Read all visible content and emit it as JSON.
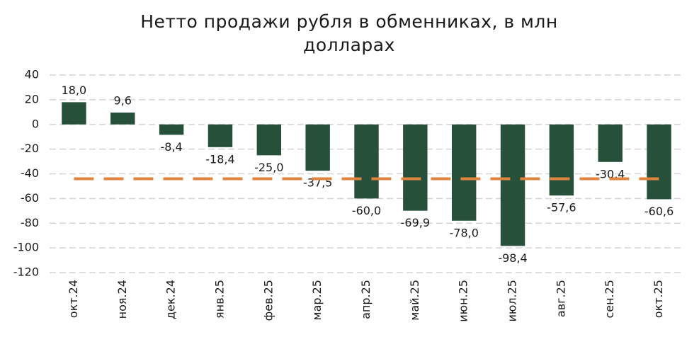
{
  "chart_data": {
    "type": "bar",
    "title": "Нетто продажи рубля в обменниках, в млн долларах",
    "categories": [
      "окт.24",
      "ноя.24",
      "дек.24",
      "янв.25",
      "фев.25",
      "мар.25",
      "апр.25",
      "май.25",
      "июн.25",
      "июл.25",
      "авг.25",
      "сен.25",
      "окт.25"
    ],
    "series": [
      {
        "type": "bar",
        "color": "#27503a",
        "values": [
          18.0,
          9.6,
          -8.4,
          -18.4,
          -25.0,
          -37.5,
          -60.0,
          -69.9,
          -78.0,
          -98.4,
          -57.6,
          -30.4,
          -60.6
        ],
        "value_labels": [
          "18,0",
          "9,6",
          "-8,4",
          "-18,4",
          "-25,0",
          "-37,5",
          "-60,0",
          "-69,9",
          "-78,0",
          "-98,4",
          "-57,6",
          "-30,4",
          "-60,6"
        ]
      },
      {
        "type": "line",
        "color": "#e0843f",
        "dashed": true,
        "values": [
          -44,
          -44,
          -44,
          -44,
          -44,
          -44,
          -44,
          -44,
          -44,
          -44,
          -44,
          -44,
          -44
        ]
      }
    ],
    "ylim": [
      -120,
      40
    ],
    "yticks": [
      -120,
      -100,
      -80,
      -60,
      -40,
      -20,
      0,
      20,
      40
    ],
    "grid": true
  }
}
